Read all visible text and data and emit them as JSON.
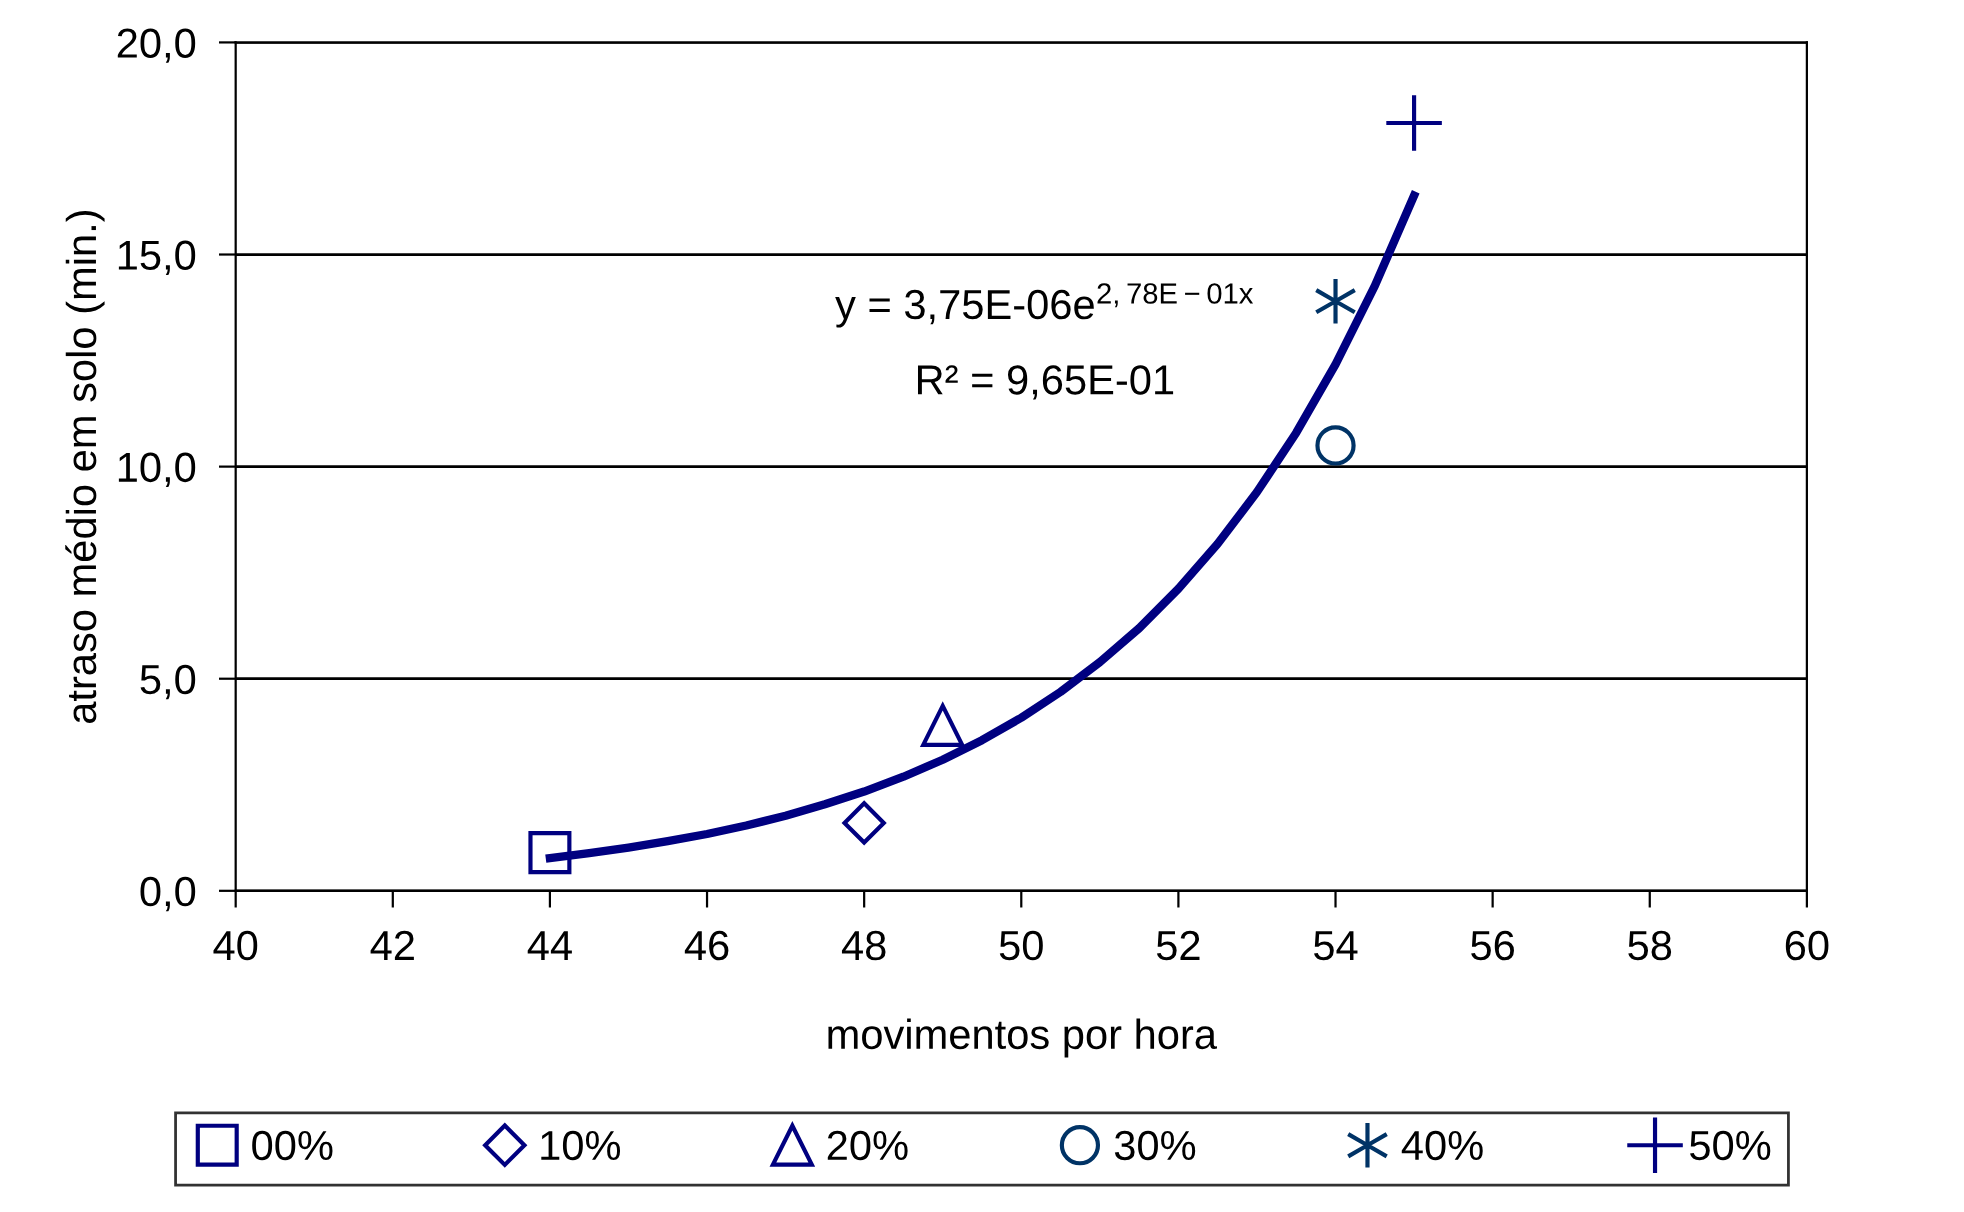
{
  "chart_data": {
    "type": "scatter",
    "xlabel": "movimentos por hora",
    "ylabel": "atraso médio em solo (min.)",
    "xlim": [
      40,
      60
    ],
    "xticks": [
      40,
      42,
      44,
      46,
      48,
      50,
      52,
      54,
      56,
      58,
      60
    ],
    "ylim": [
      0,
      20
    ],
    "yticks": [
      {
        "value": 0,
        "label": "0,0"
      },
      {
        "value": 5,
        "label": "5,0"
      },
      {
        "value": 10,
        "label": "10,0"
      },
      {
        "value": 15,
        "label": "15,0"
      },
      {
        "value": 20,
        "label": "20,0"
      }
    ],
    "grid": "y",
    "legend": "bottom",
    "series": [
      {
        "name": "00%",
        "color": "#000080",
        "marker": "square",
        "x": [
          44
        ],
        "values": [
          0.9
        ]
      },
      {
        "name": "10%",
        "color": "#000080",
        "marker": "diamond",
        "x": [
          48
        ],
        "values": [
          1.6
        ]
      },
      {
        "name": "20%",
        "color": "#000080",
        "marker": "triangle",
        "x": [
          49
        ],
        "values": [
          3.9
        ]
      },
      {
        "name": "30%",
        "color": "#003366",
        "marker": "circle",
        "x": [
          54
        ],
        "values": [
          10.5
        ]
      },
      {
        "name": "40%",
        "color": "#003366",
        "marker": "cross",
        "x": [
          54
        ],
        "values": [
          13.9
        ]
      },
      {
        "name": "50%",
        "color": "#000080",
        "x": [
          55
        ],
        "values": [
          18.1
        ]
      },
      {
        "type": "line",
        "color": "#000080",
        "marker": "none",
        "line_style": "solid",
        "x": [
          44,
          44.5,
          45,
          45.5,
          46,
          46.5,
          47,
          47.5,
          48,
          48.5,
          49,
          49.5,
          50,
          50.5,
          51,
          51.5,
          52,
          52.5,
          53,
          53.5,
          54,
          54.5,
          55
        ],
        "values": [
          0.77,
          0.89,
          1.02,
          1.17,
          1.34,
          1.54,
          1.77,
          2.04,
          2.34,
          2.69,
          3.09,
          3.55,
          4.08,
          4.69,
          5.39,
          6.19,
          7.12,
          8.18,
          9.4,
          10.8,
          12.41,
          14.26,
          16.39
        ]
      }
    ],
    "annotations": [
      "y = 3,75E-06e$^{2,78E−01x}$",
      "R² = 9,65E-01"
    ]
  }
}
